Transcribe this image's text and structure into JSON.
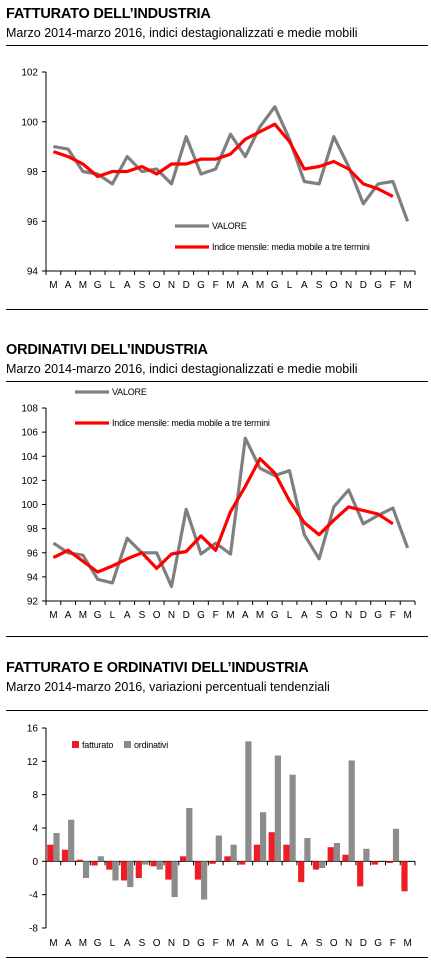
{
  "colors": {
    "valore": "#7f7f7f",
    "media": "#ff0000",
    "fatturato_bar": "#ee1c25",
    "ordinativi_bar": "#8c8c8c",
    "axis": "#000000"
  },
  "chart_data": [
    {
      "id": "fatturato",
      "type": "line",
      "title": "FATTURATO DELL’INDUSTRIA",
      "subtitle": "Marzo 2014-marzo 2016, indici destagionalizzati e medie mobili",
      "categories": [
        "M",
        "A",
        "M",
        "G",
        "L",
        "A",
        "S",
        "O",
        "N",
        "D",
        "G",
        "F",
        "M",
        "A",
        "M",
        "G",
        "L",
        "A",
        "S",
        "O",
        "N",
        "D",
        "G",
        "F",
        "M"
      ],
      "ylim": [
        94,
        102
      ],
      "yticks": [
        94,
        96,
        98,
        100,
        102
      ],
      "legend_position": "lower-center",
      "series": [
        {
          "name": "VALORE",
          "values": [
            99.0,
            98.9,
            98.0,
            97.9,
            97.5,
            98.6,
            98.0,
            98.1,
            97.5,
            99.4,
            97.9,
            98.1,
            99.5,
            98.6,
            99.8,
            100.6,
            99.3,
            97.6,
            97.5,
            99.4,
            98.2,
            96.7,
            97.5,
            97.6,
            96.0
          ]
        },
        {
          "name": "Indice mensile: media mobile a tre termini",
          "values": [
            98.8,
            98.6,
            98.3,
            97.8,
            98.0,
            98.0,
            98.2,
            97.9,
            98.3,
            98.3,
            98.5,
            98.5,
            98.7,
            99.3,
            99.6,
            99.9,
            99.2,
            98.1,
            98.2,
            98.4,
            98.1,
            97.5,
            97.3,
            97.0,
            null
          ]
        }
      ]
    },
    {
      "id": "ordinativi",
      "type": "line",
      "title": "ORDINATIVI DELL’INDUSTRIA",
      "subtitle": "Marzo 2014-marzo 2016, indici destagionalizzati e medie mobili",
      "categories": [
        "M",
        "A",
        "M",
        "G",
        "L",
        "A",
        "S",
        "O",
        "N",
        "D",
        "G",
        "F",
        "M",
        "A",
        "M",
        "G",
        "L",
        "A",
        "S",
        "O",
        "N",
        "D",
        "G",
        "F",
        "M"
      ],
      "ylim": [
        92,
        108
      ],
      "yticks": [
        92,
        94,
        96,
        98,
        100,
        102,
        104,
        106,
        108
      ],
      "legend_position": "top-center",
      "series": [
        {
          "name": "VALORE",
          "values": [
            96.8,
            96.0,
            95.8,
            93.8,
            93.5,
            97.2,
            96.0,
            96.0,
            93.2,
            99.6,
            95.9,
            96.8,
            95.9,
            105.5,
            103.0,
            102.4,
            102.8,
            97.5,
            95.5,
            99.8,
            101.2,
            98.4,
            99.1,
            99.7,
            96.4
          ]
        },
        {
          "name": "Indice mensile: media mobile a tre termini",
          "values": [
            95.6,
            96.2,
            95.3,
            94.4,
            94.9,
            95.5,
            96.0,
            94.7,
            95.9,
            96.1,
            97.4,
            96.2,
            99.4,
            101.5,
            103.8,
            102.6,
            100.3,
            98.5,
            97.5,
            98.7,
            99.8,
            99.5,
            99.2,
            98.4,
            null
          ]
        }
      ]
    },
    {
      "id": "variazioni",
      "type": "bar",
      "title": "FATTURATO E ORDINATIVI DELL’INDUSTRIA",
      "subtitle": "Marzo 2014-marzo 2016, variazioni percentuali tendenziali",
      "categories": [
        "M",
        "A",
        "M",
        "G",
        "L",
        "A",
        "S",
        "O",
        "N",
        "D",
        "G",
        "F",
        "M",
        "A",
        "M",
        "G",
        "L",
        "A",
        "S",
        "O",
        "N",
        "D",
        "G",
        "F",
        "M"
      ],
      "ylim": [
        -8,
        16
      ],
      "yticks": [
        -8,
        -4,
        0,
        4,
        8,
        12,
        16
      ],
      "legend_position": "top-left",
      "series": [
        {
          "name": "fatturato",
          "values": [
            2.0,
            1.4,
            0.2,
            -0.5,
            -1.0,
            -2.3,
            -2.0,
            -0.6,
            -2.2,
            0.6,
            -2.2,
            -0.3,
            0.6,
            -0.4,
            2.0,
            3.5,
            2.0,
            -2.5,
            -1.0,
            1.7,
            0.8,
            -3.0,
            -0.4,
            -0.2,
            -3.6
          ]
        },
        {
          "name": "ordinativi",
          "values": [
            3.4,
            5.0,
            -2.0,
            0.6,
            -2.3,
            -3.1,
            -0.4,
            -1.0,
            -4.3,
            6.4,
            -4.6,
            3.1,
            2.0,
            14.4,
            5.9,
            12.7,
            10.4,
            2.8,
            -0.8,
            2.2,
            12.1,
            1.5,
            0.0,
            3.9,
            0.0
          ]
        }
      ]
    }
  ]
}
